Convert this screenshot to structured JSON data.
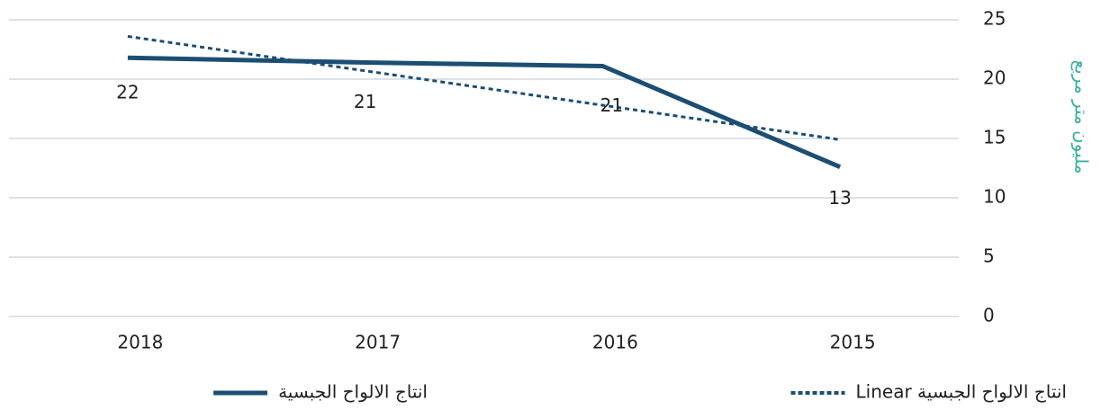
{
  "chart_data": {
    "type": "line",
    "y_axis_title": "مليون متر مربع",
    "categories": [
      "2018",
      "2017",
      "2016",
      "2015"
    ],
    "series": [
      {
        "name": "انتاج الالواح الجبسية",
        "color": "#1c4e73",
        "values": [
          21.8,
          21.4,
          21.1,
          12.6
        ],
        "value_labels": [
          "22",
          "21",
          "21",
          "13"
        ]
      },
      {
        "name": "انتاج الالواح الجبسية  Linear",
        "color": "#1c4e73",
        "dashed": true,
        "values": [
          23.6,
          20.7,
          17.8,
          14.9
        ]
      }
    ],
    "ylim": [
      0,
      25
    ],
    "yticks": [
      0,
      5,
      10,
      15,
      20,
      25
    ],
    "grid": true,
    "legend": "bottom",
    "title_color": "#3ab0a0"
  }
}
